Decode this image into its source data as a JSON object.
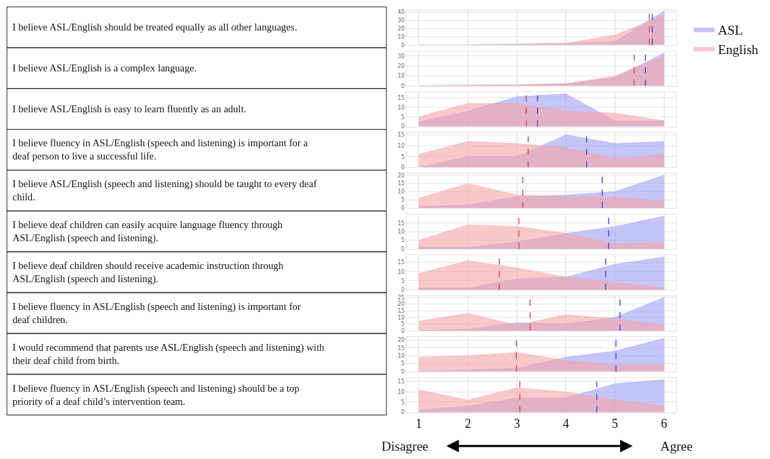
{
  "chart_data": [
    {
      "type": "area",
      "ylabel": "I believe ASL/English should be treated equally as all other languages.",
      "x": [
        1,
        2,
        3,
        4,
        5,
        6
      ],
      "xlim": [
        0.75,
        6.25
      ],
      "ylim": [
        0,
        42
      ],
      "yticks": [
        0,
        10,
        20,
        30,
        40
      ],
      "grid": true,
      "tick_labels": "y",
      "legend": "right",
      "series": [
        {
          "name": "ASL",
          "color": "#9f9ff5",
          "values": [
            0,
            0,
            1,
            2,
            4,
            41
          ]
        },
        {
          "name": "English",
          "color": "#f5a3a3",
          "values": [
            0,
            0,
            1,
            2,
            12,
            36
          ]
        }
      ],
      "ref_lines": [
        {
          "axis": "x",
          "value": 5.7,
          "color": "#e03a3a",
          "line_style": "dashed"
        },
        {
          "axis": "x",
          "value": 5.76,
          "color": "#3a3ae0",
          "line_style": "dashed"
        }
      ]
    },
    {
      "type": "area",
      "ylabel": "I believe ASL/English is a complex language.",
      "x": [
        1,
        2,
        3,
        4,
        5,
        6
      ],
      "xlim": [
        0.75,
        6.25
      ],
      "ylim": [
        0,
        35
      ],
      "yticks": [
        0,
        10,
        20,
        30
      ],
      "grid": true,
      "tick_labels": "y",
      "series": [
        {
          "color": "#9f9ff5",
          "values": [
            0,
            0,
            1,
            2,
            8,
            33
          ]
        },
        {
          "color": "#f5a3a3",
          "values": [
            0,
            1,
            1,
            2,
            10,
            30
          ]
        }
      ],
      "ref_lines": [
        {
          "axis": "x",
          "value": 5.39,
          "color": "#e03a3a",
          "line_style": "dashed"
        },
        {
          "axis": "x",
          "value": 5.62,
          "color": "#3a3ae0",
          "line_style": "dashed"
        }
      ]
    },
    {
      "type": "area",
      "ylabel": "I believe ASL/English is easy to learn fluently as an adult.",
      "x": [
        1,
        2,
        3,
        4,
        5,
        6
      ],
      "xlim": [
        0.75,
        6.25
      ],
      "ylim": [
        0,
        18
      ],
      "yticks": [
        0,
        5,
        10,
        15
      ],
      "grid": true,
      "tick_labels": "y",
      "series": [
        {
          "color": "#9f9ff5",
          "values": [
            2.5,
            8,
            15.5,
            17,
            3,
            3
          ]
        },
        {
          "color": "#f5a3a3",
          "values": [
            5,
            12,
            12,
            8,
            7,
            3
          ]
        }
      ],
      "ref_lines": [
        {
          "axis": "x",
          "value": 3.19,
          "color": "#e03a3a",
          "line_style": "dashed"
        },
        {
          "axis": "x",
          "value": 3.42,
          "color": "#3a3ae0",
          "line_style": "dashed"
        }
      ]
    },
    {
      "type": "area",
      "ylabel": "I believe fluency in ASL/English (speech and listening) is important for a deaf person to live a successful life.",
      "x": [
        1,
        2,
        3,
        4,
        5,
        6
      ],
      "xlim": [
        0.75,
        6.25
      ],
      "ylim": [
        0,
        16
      ],
      "yticks": [
        0,
        5,
        10,
        15
      ],
      "grid": true,
      "tick_labels": "y",
      "series": [
        {
          "color": "#9f9ff5",
          "values": [
            0,
            5,
            5,
            15,
            11,
            12
          ]
        },
        {
          "color": "#f5a3a3",
          "values": [
            6,
            12,
            11,
            9,
            4,
            6
          ]
        }
      ],
      "ref_lines": [
        {
          "axis": "x",
          "value": 3.23,
          "color": "#e03a3a",
          "line_style": "dashed"
        },
        {
          "axis": "x",
          "value": 4.42,
          "color": "#3a3ae0",
          "line_style": "dashed"
        }
      ]
    },
    {
      "type": "area",
      "ylabel": "I believe ASL/English (speech and listening) should be taught to every deaf child.",
      "x": [
        1,
        2,
        3,
        4,
        5,
        6
      ],
      "xlim": [
        0.75,
        6.25
      ],
      "ylim": [
        0,
        21
      ],
      "yticks": [
        0,
        5,
        10,
        15,
        20
      ],
      "grid": true,
      "tick_labels": "y",
      "series": [
        {
          "color": "#9f9ff5",
          "values": [
            1,
            2,
            7,
            8,
            10,
            20
          ]
        },
        {
          "color": "#f5a3a3",
          "values": [
            6,
            15,
            8,
            7,
            7,
            4
          ]
        }
      ],
      "ref_lines": [
        {
          "axis": "x",
          "value": 3.12,
          "color": "#e03a3a",
          "line_style": "dashed"
        },
        {
          "axis": "x",
          "value": 4.74,
          "color": "#3a3ae0",
          "line_style": "dashed"
        }
      ]
    },
    {
      "type": "area",
      "ylabel": "I believe deaf children can easily acquire language fluency through ASL/English (speech and listening).",
      "x": [
        1,
        2,
        3,
        4,
        5,
        6
      ],
      "xlim": [
        0.75,
        6.25
      ],
      "ylim": [
        0,
        20
      ],
      "yticks": [
        0,
        5,
        10,
        15
      ],
      "grid": true,
      "tick_labels": "y",
      "series": [
        {
          "color": "#9f9ff5",
          "values": [
            1,
            1,
            4,
            9,
            13,
            19
          ]
        },
        {
          "color": "#f5a3a3",
          "values": [
            5,
            14,
            13,
            9,
            3,
            4
          ]
        }
      ],
      "ref_lines": [
        {
          "axis": "x",
          "value": 3.04,
          "color": "#e03a3a",
          "line_style": "dashed"
        },
        {
          "axis": "x",
          "value": 4.87,
          "color": "#3a3ae0",
          "line_style": "dashed"
        }
      ]
    },
    {
      "type": "area",
      "ylabel": "I believe deaf children should receive academic instruction through ASL/English (speech and listening).",
      "x": [
        1,
        2,
        3,
        4,
        5,
        6
      ],
      "xlim": [
        0.75,
        6.25
      ],
      "ylim": [
        0,
        19
      ],
      "yticks": [
        0,
        5,
        10,
        15
      ],
      "grid": true,
      "tick_labels": "y",
      "series": [
        {
          "color": "#9f9ff5",
          "values": [
            1,
            1,
            6,
            7,
            14,
            18
          ]
        },
        {
          "color": "#f5a3a3",
          "values": [
            9,
            16,
            12,
            7,
            4,
            1
          ]
        }
      ],
      "ref_lines": [
        {
          "axis": "x",
          "value": 2.64,
          "color": "#e03a3a",
          "line_style": "dashed"
        },
        {
          "axis": "x",
          "value": 4.81,
          "color": "#3a3ae0",
          "line_style": "dashed"
        }
      ]
    },
    {
      "type": "area",
      "ylabel": "I believe fluency in ASL/English (speech and listening) is important for deaf children.",
      "x": [
        1,
        2,
        3,
        4,
        5,
        6
      ],
      "xlim": [
        0.75,
        6.25
      ],
      "ylim": [
        0,
        26
      ],
      "yticks": [
        0,
        5,
        10,
        15,
        20,
        25
      ],
      "grid": true,
      "tick_labels": "y",
      "series": [
        {
          "color": "#9f9ff5",
          "values": [
            0,
            1,
            6,
            5,
            10,
            25
          ]
        },
        {
          "color": "#f5a3a3",
          "values": [
            7,
            13,
            4,
            12,
            9,
            4
          ]
        }
      ],
      "ref_lines": [
        {
          "axis": "x",
          "value": 3.27,
          "color": "#e03a3a",
          "line_style": "dashed"
        },
        {
          "axis": "x",
          "value": 5.1,
          "color": "#3a3ae0",
          "line_style": "dashed"
        }
      ]
    },
    {
      "type": "area",
      "ylabel": "I would recommend that parents use ASL/English (speech and listening) with their deaf child from birth.",
      "x": [
        1,
        2,
        3,
        4,
        5,
        6
      ],
      "xlim": [
        0.75,
        6.25
      ],
      "ylim": [
        0,
        22
      ],
      "yticks": [
        0,
        5,
        10,
        15,
        20
      ],
      "grid": true,
      "tick_labels": "y",
      "series": [
        {
          "color": "#9f9ff5",
          "values": [
            0,
            1,
            2,
            9,
            13,
            21
          ]
        },
        {
          "color": "#f5a3a3",
          "values": [
            9,
            10,
            12,
            7,
            4,
            4
          ]
        }
      ],
      "ref_lines": [
        {
          "axis": "x",
          "value": 2.99,
          "color": "#e03a3a",
          "line_style": "dashed"
        },
        {
          "axis": "x",
          "value": 5.02,
          "color": "#3a3ae0",
          "line_style": "dashed"
        }
      ]
    },
    {
      "type": "area",
      "ylabel": "I believe fluency in ASL/English (speech and listening) should be a top priority of a deaf child’s intervention team.",
      "x": [
        1,
        2,
        3,
        4,
        5,
        6
      ],
      "xlim": [
        0.75,
        6.25
      ],
      "ylim": [
        0,
        17
      ],
      "yticks": [
        0,
        5,
        10,
        15
      ],
      "xticks": [
        1,
        2,
        3,
        4,
        5,
        6
      ],
      "grid": true,
      "series": [
        {
          "color": "#9f9ff5",
          "values": [
            1,
            3,
            7,
            7,
            14,
            16
          ]
        },
        {
          "color": "#f5a3a3",
          "values": [
            11,
            6,
            12,
            10,
            6,
            3
          ]
        }
      ],
      "ref_lines": [
        {
          "axis": "x",
          "value": 3.06,
          "color": "#e03a3a",
          "line_style": "dashed"
        },
        {
          "axis": "x",
          "value": 4.63,
          "color": "#3a3ae0",
          "line_style": "dashed"
        }
      ],
      "annotations": [
        "Disagree",
        "Agree"
      ]
    }
  ]
}
